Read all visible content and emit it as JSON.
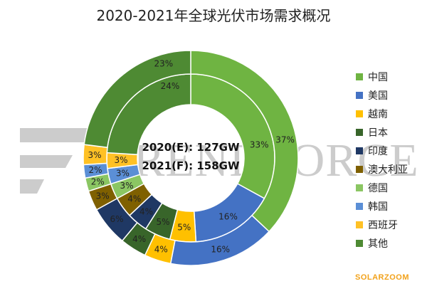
{
  "chart_data": {
    "type": "donut",
    "title": "2020-2021年全球光伏市场需求概况",
    "categories": [
      "中国",
      "美国",
      "越南",
      "日本",
      "印度",
      "澳大利亚",
      "德国",
      "韩国",
      "西班牙",
      "其他"
    ],
    "colors": [
      "#6fb442",
      "#4472c4",
      "#ffc000",
      "#38652a",
      "#1f3864",
      "#7f6000",
      "#8bc663",
      "#5b8fd6",
      "#ffc125",
      "#4e8a33"
    ],
    "series": [
      {
        "name": "2020(E)",
        "total_label": "2020(E):   127GW",
        "values": [
          33,
          16,
          5,
          5,
          4,
          4,
          3,
          3,
          3,
          24
        ],
        "labels": [
          "33%",
          "16%",
          "5%",
          "5%",
          "4%",
          "4%",
          "3%",
          "3%",
          "3%",
          "24%"
        ]
      },
      {
        "name": "2021(F)",
        "total_label": "2021(F):   158GW",
        "values": [
          37,
          16,
          4,
          4,
          6,
          3,
          2,
          2,
          3,
          23
        ],
        "labels": [
          "37%",
          "16%",
          "4%",
          "4%",
          "6%",
          "3%",
          "2%",
          "2%",
          "3%",
          "23%"
        ]
      }
    ],
    "legend_position": "right"
  },
  "watermark": "TRENDFORCE",
  "source": "SOLARZOOM"
}
